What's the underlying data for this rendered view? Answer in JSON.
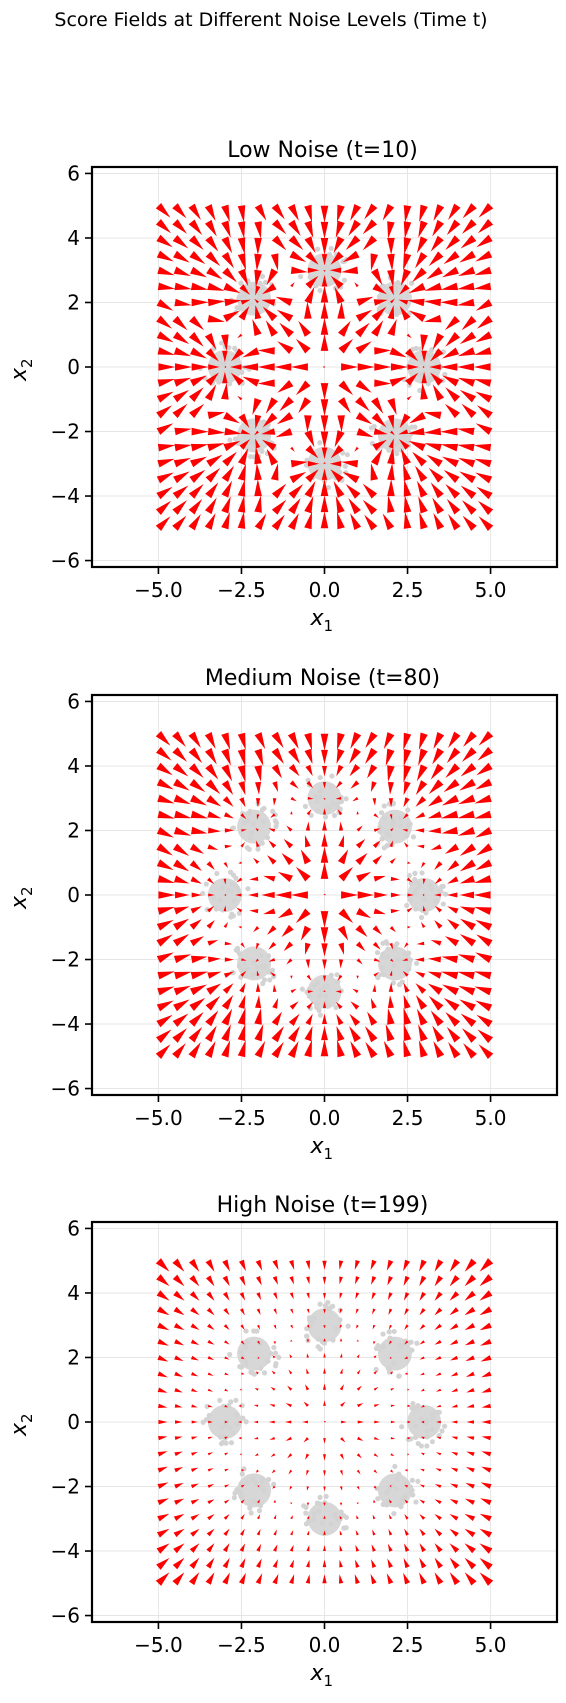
{
  "figure": {
    "suptitle": "Score Fields at Different Noise Levels (Time t)"
  },
  "chart_data": [
    {
      "type": "quiver",
      "title": "Low Noise (t=10)",
      "xlabel": "x1",
      "ylabel": "x2",
      "xlim": [
        -7,
        7
      ],
      "ylim": [
        -6.2,
        6.2
      ],
      "xticks": [
        -5.0,
        -2.5,
        0.0,
        2.5,
        5.0
      ],
      "xtick_labels": [
        "−5.0",
        "−2.5",
        "0.0",
        "2.5",
        "5.0"
      ],
      "yticks": [
        -6,
        -4,
        -2,
        0,
        2,
        4,
        6
      ],
      "ytick_labels": [
        "−6",
        "−4",
        "−2",
        "0",
        "2",
        "4",
        "6"
      ],
      "grid": true,
      "grid_range": [
        -5,
        5
      ],
      "grid_points": 21,
      "arrow_color": "#ff0000",
      "cluster_color": "#d3d3d3",
      "cluster_centers": [
        [
          0,
          3
        ],
        [
          2.12,
          2.12
        ],
        [
          3,
          0
        ],
        [
          2.12,
          -2.12
        ],
        [
          0,
          -3
        ],
        [
          -2.12,
          -2.12
        ],
        [
          -3,
          0
        ],
        [
          -2.12,
          2.12
        ]
      ],
      "noise_t": 10
    },
    {
      "type": "quiver",
      "title": "Medium Noise (t=80)",
      "xlabel": "x1",
      "ylabel": "x2",
      "xlim": [
        -7,
        7
      ],
      "ylim": [
        -6.2,
        6.2
      ],
      "xticks": [
        -5.0,
        -2.5,
        0.0,
        2.5,
        5.0
      ],
      "xtick_labels": [
        "−5.0",
        "−2.5",
        "0.0",
        "2.5",
        "5.0"
      ],
      "yticks": [
        -6,
        -4,
        -2,
        0,
        2,
        4,
        6
      ],
      "ytick_labels": [
        "−6",
        "−4",
        "−2",
        "0",
        "2",
        "4",
        "6"
      ],
      "grid": true,
      "grid_range": [
        -5,
        5
      ],
      "grid_points": 21,
      "arrow_color": "#ff0000",
      "cluster_color": "#d3d3d3",
      "cluster_centers": [
        [
          0,
          3
        ],
        [
          2.12,
          2.12
        ],
        [
          3,
          0
        ],
        [
          2.12,
          -2.12
        ],
        [
          0,
          -3
        ],
        [
          -2.12,
          -2.12
        ],
        [
          -3,
          0
        ],
        [
          -2.12,
          2.12
        ]
      ],
      "noise_t": 80
    },
    {
      "type": "quiver",
      "title": "High Noise (t=199)",
      "xlabel": "x1",
      "ylabel": "x2",
      "xlim": [
        -7,
        7
      ],
      "ylim": [
        -6.2,
        6.2
      ],
      "xticks": [
        -5.0,
        -2.5,
        0.0,
        2.5,
        5.0
      ],
      "xtick_labels": [
        "−5.0",
        "−2.5",
        "0.0",
        "2.5",
        "5.0"
      ],
      "yticks": [
        -6,
        -4,
        -2,
        0,
        2,
        4,
        6
      ],
      "ytick_labels": [
        "−6",
        "−4",
        "−2",
        "0",
        "2",
        "4",
        "6"
      ],
      "grid": true,
      "grid_range": [
        -5,
        5
      ],
      "grid_points": 21,
      "arrow_color": "#ff0000",
      "cluster_color": "#d3d3d3",
      "cluster_centers": [
        [
          0,
          3
        ],
        [
          2.12,
          2.12
        ],
        [
          3,
          0
        ],
        [
          2.12,
          -2.12
        ],
        [
          0,
          -3
        ],
        [
          -2.12,
          -2.12
        ],
        [
          -3,
          0
        ],
        [
          -2.12,
          2.12
        ]
      ],
      "noise_t": 199
    }
  ]
}
